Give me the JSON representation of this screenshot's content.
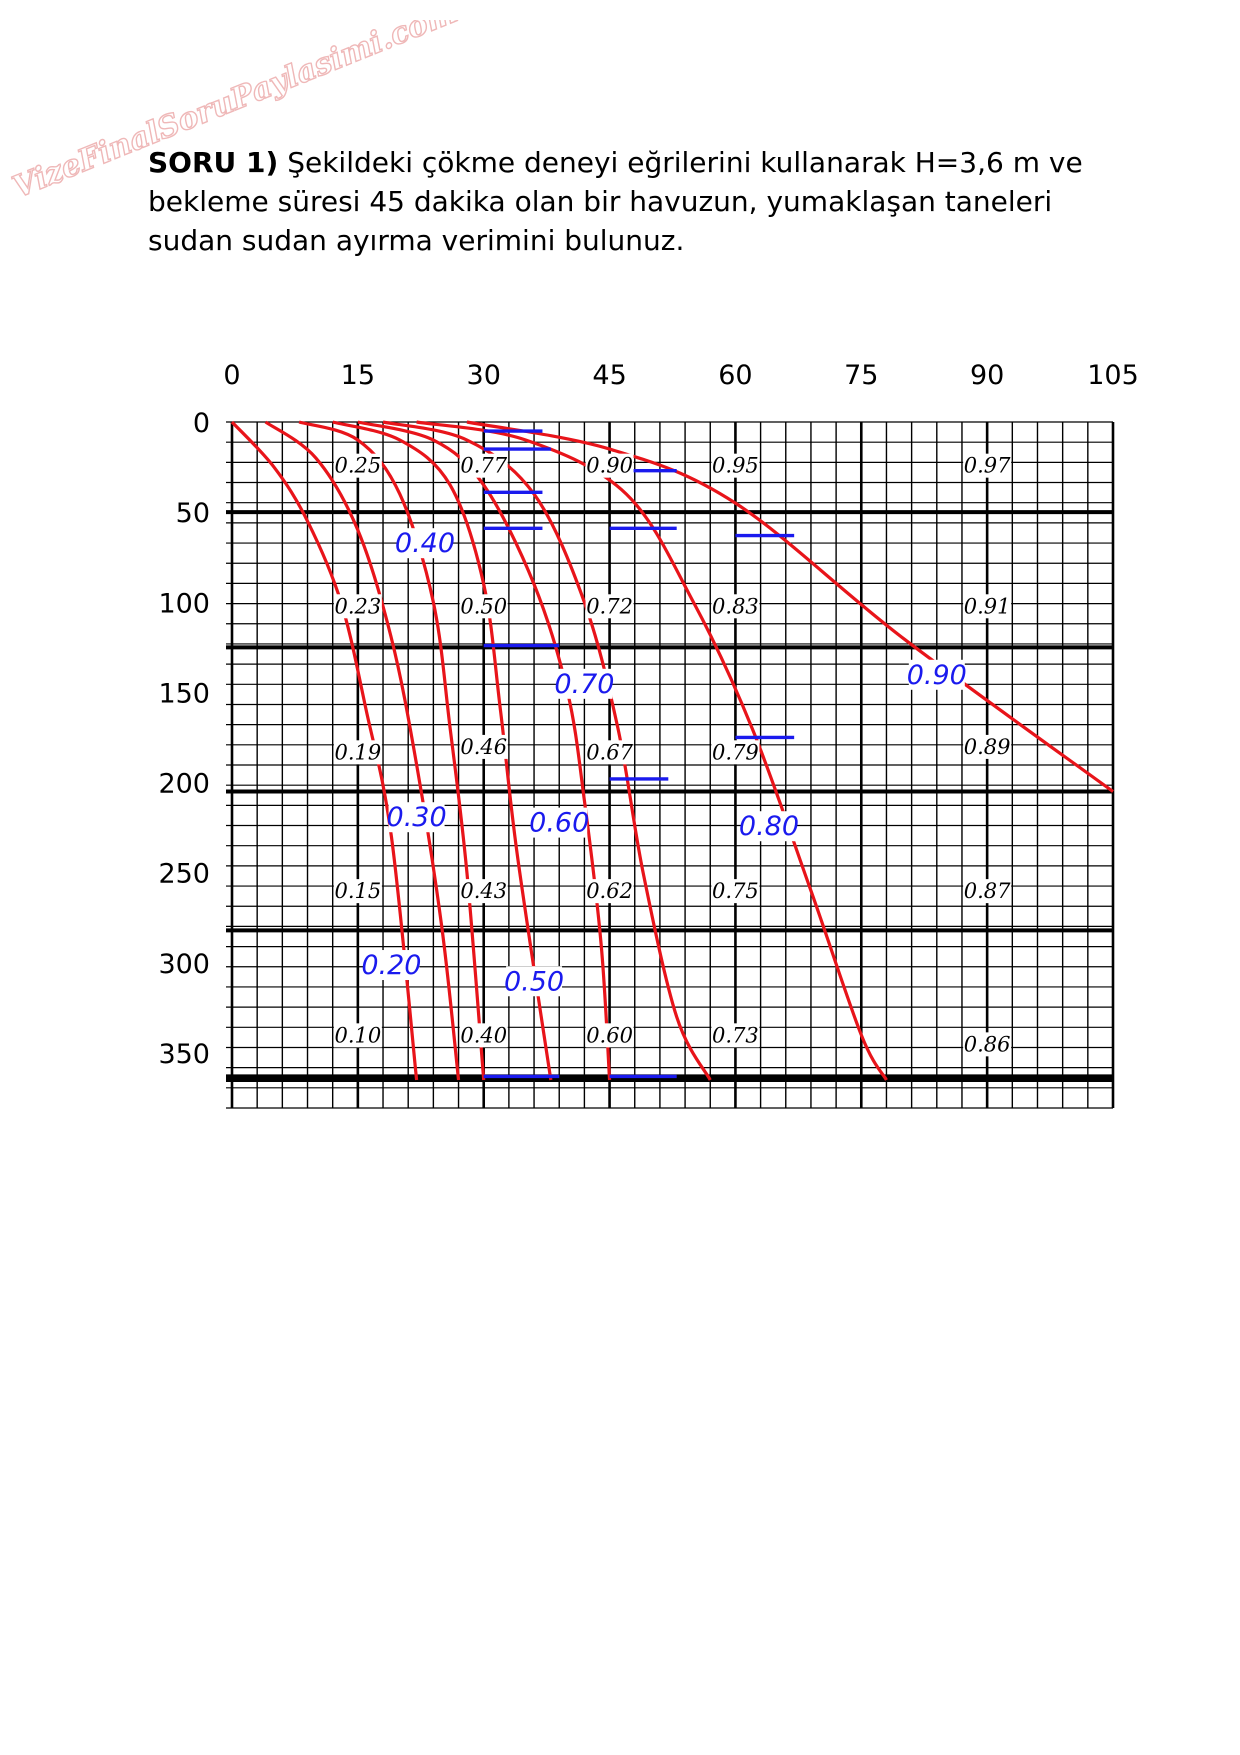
{
  "watermark": "VizeFinalSoruPaylasimi.com",
  "question": {
    "label": "SORU 1)",
    "text": "Şekildeki çökme deneyi eğrilerini kullanarak H=3,6 m ve bekleme süresi 45 dakika olan bir havuzun, yumaklaşan taneleri sudan sudan ayırma verimini bulunuz."
  },
  "chart_data": {
    "type": "line",
    "title": "",
    "xlabel": "",
    "ylabel": "",
    "xlim": [
      0,
      105
    ],
    "ylim": [
      365,
      0
    ],
    "y_inverted": true,
    "grid": true,
    "x_ticks": [
      "0",
      "15",
      "30",
      "45",
      "60",
      "75",
      "90",
      "105"
    ],
    "y_ticks": [
      "0",
      "50",
      "100",
      "150",
      "200",
      "250",
      "300",
      "350"
    ],
    "series": [
      {
        "name": "0.20",
        "points": [
          [
            0,
            0
          ],
          [
            5,
            25
          ],
          [
            9,
            55
          ],
          [
            13,
            100
          ],
          [
            16,
            160
          ],
          [
            19,
            230
          ],
          [
            22,
            365
          ]
        ]
      },
      {
        "name": "0.30",
        "points": [
          [
            4,
            0
          ],
          [
            10,
            20
          ],
          [
            15,
            60
          ],
          [
            19,
            120
          ],
          [
            22,
            190
          ],
          [
            25,
            280
          ],
          [
            27,
            365
          ]
        ]
      },
      {
        "name": "0.40",
        "points": [
          [
            8,
            0
          ],
          [
            15,
            10
          ],
          [
            20,
            40
          ],
          [
            24,
            100
          ],
          [
            26,
            170
          ],
          [
            28,
            250
          ],
          [
            30,
            365
          ]
        ]
      },
      {
        "name": "0.50",
        "points": [
          [
            12,
            0
          ],
          [
            20,
            10
          ],
          [
            26,
            35
          ],
          [
            30,
            90
          ],
          [
            32,
            160
          ],
          [
            34,
            240
          ],
          [
            38,
            365
          ]
        ]
      },
      {
        "name": "0.60",
        "points": [
          [
            15,
            0
          ],
          [
            24,
            10
          ],
          [
            30,
            35
          ],
          [
            36,
            90
          ],
          [
            40,
            150
          ],
          [
            42,
            210
          ],
          [
            44,
            290
          ],
          [
            45,
            365
          ]
        ]
      },
      {
        "name": "0.70",
        "points": [
          [
            18,
            0
          ],
          [
            28,
            10
          ],
          [
            36,
            40
          ],
          [
            42,
            100
          ],
          [
            46,
            170
          ],
          [
            49,
            250
          ],
          [
            53,
            330
          ],
          [
            57,
            365
          ]
        ]
      },
      {
        "name": "0.80",
        "points": [
          [
            22,
            0
          ],
          [
            35,
            10
          ],
          [
            47,
            40
          ],
          [
            55,
            100
          ],
          [
            62,
            170
          ],
          [
            69,
            260
          ],
          [
            75,
            340
          ],
          [
            78,
            365
          ]
        ]
      },
      {
        "name": "0.90",
        "points": [
          [
            28,
            0
          ],
          [
            45,
            15
          ],
          [
            60,
            45
          ],
          [
            80,
            120
          ],
          [
            105,
            205
          ]
        ]
      }
    ],
    "cell_values": [
      {
        "x": 15,
        "y": 27,
        "label": "0.25"
      },
      {
        "x": 30,
        "y": 27,
        "label": "0.77"
      },
      {
        "x": 45,
        "y": 27,
        "label": "0.90"
      },
      {
        "x": 60,
        "y": 27,
        "label": "0.95"
      },
      {
        "x": 90,
        "y": 27,
        "label": "0.97"
      },
      {
        "x": 15,
        "y": 105,
        "label": "0.23"
      },
      {
        "x": 30,
        "y": 105,
        "label": "0.50"
      },
      {
        "x": 45,
        "y": 105,
        "label": "0.72"
      },
      {
        "x": 60,
        "y": 105,
        "label": "0.83"
      },
      {
        "x": 90,
        "y": 105,
        "label": "0.91"
      },
      {
        "x": 15,
        "y": 186,
        "label": "0.19"
      },
      {
        "x": 30,
        "y": 183,
        "label": "0.46"
      },
      {
        "x": 45,
        "y": 186,
        "label": "0.67"
      },
      {
        "x": 60,
        "y": 186,
        "label": "0.79"
      },
      {
        "x": 90,
        "y": 183,
        "label": "0.89"
      },
      {
        "x": 15,
        "y": 263,
        "label": "0.15"
      },
      {
        "x": 30,
        "y": 263,
        "label": "0.43"
      },
      {
        "x": 45,
        "y": 263,
        "label": "0.62"
      },
      {
        "x": 60,
        "y": 263,
        "label": "0.75"
      },
      {
        "x": 90,
        "y": 263,
        "label": "0.87"
      },
      {
        "x": 15,
        "y": 343,
        "label": "0.10"
      },
      {
        "x": 30,
        "y": 343,
        "label": "0.40"
      },
      {
        "x": 45,
        "y": 343,
        "label": "0.60"
      },
      {
        "x": 60,
        "y": 343,
        "label": "0.73"
      },
      {
        "x": 90,
        "y": 348,
        "label": "0.86"
      }
    ],
    "curve_labels": [
      {
        "x": 23,
        "y": 70,
        "label": "0.40"
      },
      {
        "x": 42,
        "y": 148,
        "label": "0.70"
      },
      {
        "x": 84,
        "y": 143,
        "label": "0.90"
      },
      {
        "x": 22,
        "y": 222,
        "label": "0.30"
      },
      {
        "x": 39,
        "y": 225,
        "label": "0.60"
      },
      {
        "x": 64,
        "y": 227,
        "label": "0.80"
      },
      {
        "x": 19,
        "y": 304,
        "label": "0.20"
      },
      {
        "x": 36,
        "y": 313,
        "label": "0.50"
      }
    ],
    "blue_segments": [
      {
        "x1": 30,
        "x2": 37,
        "y": 5
      },
      {
        "x1": 30,
        "x2": 38,
        "y": 15
      },
      {
        "x1": 45,
        "x2": 53,
        "y": 27
      },
      {
        "x1": 30,
        "x2": 37,
        "y": 39
      },
      {
        "x1": 30,
        "x2": 37,
        "y": 59
      },
      {
        "x1": 45,
        "x2": 53,
        "y": 59
      },
      {
        "x1": 60,
        "x2": 67,
        "y": 63
      },
      {
        "x1": 30,
        "x2": 39,
        "y": 124
      },
      {
        "x1": 60,
        "x2": 67,
        "y": 175
      },
      {
        "x1": 45,
        "x2": 52,
        "y": 198
      },
      {
        "x1": 30,
        "x2": 39,
        "y": 363
      },
      {
        "x1": 45,
        "x2": 53,
        "y": 363
      }
    ]
  }
}
